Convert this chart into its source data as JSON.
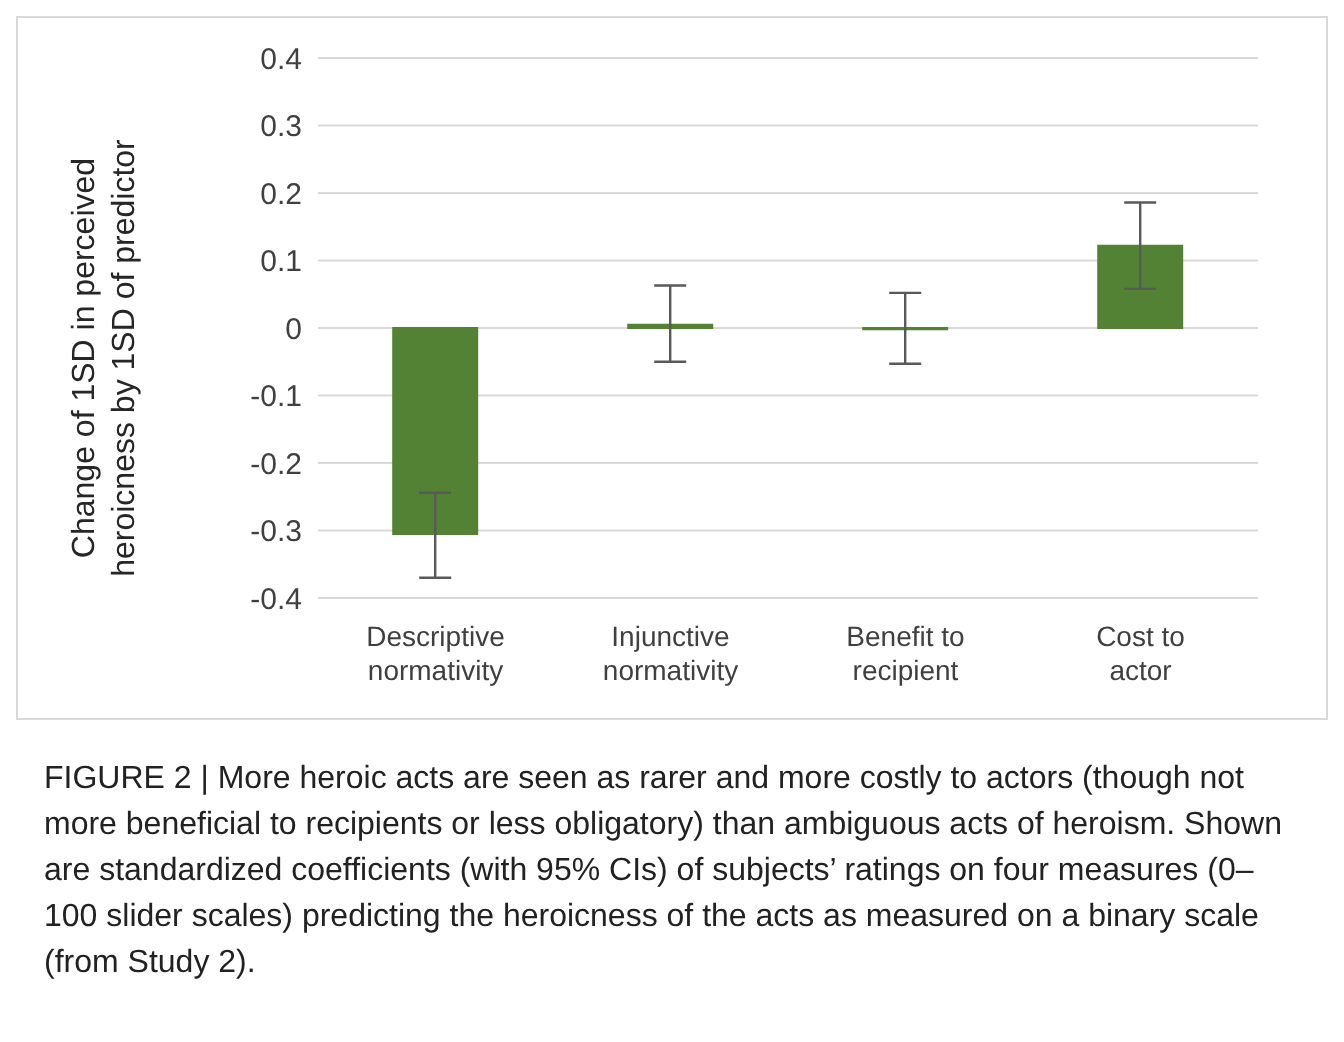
{
  "chart_data": {
    "type": "bar",
    "categories": [
      "Descriptive normativity",
      "Injunctive normativity",
      "Benefit to recipient",
      "Cost to actor"
    ],
    "values": [
      -0.305,
      0.005,
      -0.002,
      0.122
    ],
    "errors": [
      [
        -0.37,
        -0.244
      ],
      [
        -0.05,
        0.063
      ],
      [
        -0.053,
        0.052
      ],
      [
        0.058,
        0.186
      ]
    ],
    "color": "#548235",
    "ylabel": "Change of 1SD in perceived heroicness by 1SD of predictor",
    "ylim": [
      -0.4,
      0.4
    ],
    "yticks": [
      -0.4,
      -0.3,
      -0.2,
      -0.1,
      0,
      0.1,
      0.2,
      0.3,
      0.4
    ],
    "grid": "y",
    "annotations": [
      "FIGURE 2 | More heroic acts are seen as rarer and more costly to actors (though not more beneficial to recipients or less obligatory) than ambiguous acts of heroism. Shown are standardized coefficients (with 95% CIs) of subjects’ ratings on four measures (0–100 slider scales) predicting the heroicness of the acts as measured on a binary scale (from Study 2)."
    ]
  }
}
